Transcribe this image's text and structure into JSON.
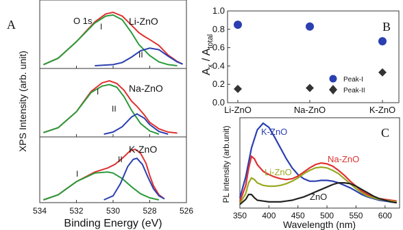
{
  "panel_letters": {
    "a": "A",
    "b": "B",
    "c": "C"
  },
  "chart_data": [
    {
      "panel": "A",
      "type": "line",
      "xlabel": "Binding Energy (eV)",
      "ylabel": "XPS Intensity (arb. unit)",
      "x_tick_labels": [
        "534",
        "532",
        "530",
        "528",
        "526"
      ],
      "xlim": [
        534,
        526
      ],
      "x_reversed": true,
      "annotation": "O 1s",
      "subplots": [
        {
          "name": "Li-ZnO",
          "peak_labels": [
            "I",
            "II"
          ],
          "series": [
            {
              "role": "data",
              "color": "#222222",
              "x": [
                533.8,
                533,
                532,
                531,
                530.4,
                530,
                529.5,
                529,
                528.6,
                528.3,
                528,
                527.5,
                527,
                526.5,
                526.2
              ],
              "y": [
                0.02,
                0.14,
                0.45,
                0.82,
                0.97,
                1.0,
                0.93,
                0.76,
                0.62,
                0.55,
                0.49,
                0.38,
                0.2,
                0.08,
                0.03
              ]
            },
            {
              "role": "fit-sum",
              "color": "#e03030",
              "x": [
                533.8,
                533,
                532,
                531,
                530.4,
                530,
                529.5,
                529,
                528.6,
                528.3,
                528,
                527.5,
                527,
                526.5,
                526.2
              ],
              "y": [
                0.02,
                0.14,
                0.45,
                0.82,
                0.97,
                1.0,
                0.93,
                0.76,
                0.62,
                0.55,
                0.49,
                0.38,
                0.2,
                0.08,
                0.03
              ]
            },
            {
              "role": "peak-I",
              "color": "#2a9a3a",
              "x": [
                533.8,
                533,
                532,
                531,
                530.4,
                530,
                529.5,
                529,
                528.6,
                528,
                527.5,
                527,
                526.5
              ],
              "y": [
                0.02,
                0.14,
                0.45,
                0.8,
                0.93,
                0.95,
                0.86,
                0.62,
                0.4,
                0.19,
                0.07,
                0.02,
                0.0
              ]
            },
            {
              "role": "peak-II",
              "color": "#2a3fb0",
              "x": [
                531,
                530,
                529.5,
                529,
                528.5,
                528,
                527.5,
                527,
                526.5,
                526.2
              ],
              "y": [
                0.0,
                0.02,
                0.06,
                0.16,
                0.28,
                0.33,
                0.3,
                0.18,
                0.07,
                0.03
              ]
            }
          ]
        },
        {
          "name": "Na-ZnO",
          "peak_labels": [
            "I",
            "II"
          ],
          "series": [
            {
              "role": "data",
              "color": "#222222",
              "x": [
                533.8,
                533,
                532,
                531.2,
                530.6,
                530.2,
                529.8,
                529.4,
                529,
                528.7,
                528.3,
                528,
                527.5,
                527,
                526.5
              ],
              "y": [
                0.03,
                0.12,
                0.42,
                0.8,
                0.96,
                1.0,
                0.95,
                0.82,
                0.62,
                0.52,
                0.36,
                0.22,
                0.1,
                0.04,
                0.02
              ]
            },
            {
              "role": "fit-sum",
              "color": "#e03030",
              "x": [
                533.8,
                533,
                532,
                531.2,
                530.6,
                530.2,
                529.8,
                529.4,
                529,
                528.7,
                528.3,
                528,
                527.5,
                527,
                526.5
              ],
              "y": [
                0.03,
                0.12,
                0.42,
                0.8,
                0.96,
                1.0,
                0.95,
                0.82,
                0.62,
                0.52,
                0.36,
                0.22,
                0.1,
                0.04,
                0.02
              ]
            },
            {
              "role": "peak-I",
              "color": "#2a9a3a",
              "x": [
                533.8,
                533,
                532,
                531.2,
                530.6,
                530.2,
                529.8,
                529.4,
                529,
                528.5,
                528,
                527.5
              ],
              "y": [
                0.03,
                0.12,
                0.42,
                0.78,
                0.9,
                0.93,
                0.88,
                0.7,
                0.45,
                0.2,
                0.06,
                0.0
              ]
            },
            {
              "role": "peak-II",
              "color": "#2a3fb0",
              "x": [
                530.5,
                530,
                529.5,
                529,
                528.7,
                528.3,
                528,
                527.5,
                527
              ],
              "y": [
                0.0,
                0.04,
                0.14,
                0.32,
                0.38,
                0.3,
                0.18,
                0.05,
                0.0
              ]
            }
          ]
        },
        {
          "name": "K-ZnO",
          "peak_labels": [
            "I",
            "II"
          ],
          "series": [
            {
              "role": "data",
              "color": "#222222",
              "x": [
                533.8,
                533,
                532,
                531,
                530.3,
                529.9,
                529.5,
                529.1,
                528.8,
                528.5,
                528.2,
                528,
                527.8,
                527.5,
                527.2
              ],
              "y": [
                0.0,
                0.1,
                0.36,
                0.55,
                0.63,
                0.7,
                0.82,
                0.96,
                1.0,
                0.92,
                0.72,
                0.48,
                0.28,
                0.1,
                0.02
              ]
            },
            {
              "role": "fit-sum",
              "color": "#e03030",
              "x": [
                533.8,
                533,
                532,
                531,
                530.3,
                529.9,
                529.5,
                529.1,
                528.8,
                528.5,
                528.2,
                528,
                527.8,
                527.5,
                527.2
              ],
              "y": [
                0.0,
                0.1,
                0.36,
                0.55,
                0.63,
                0.7,
                0.82,
                0.96,
                1.0,
                0.92,
                0.72,
                0.48,
                0.28,
                0.1,
                0.02
              ]
            },
            {
              "role": "peak-I",
              "color": "#2a9a3a",
              "x": [
                533.8,
                533,
                532,
                531,
                530.3,
                530,
                529.5,
                529,
                528.5,
                528,
                527.5
              ],
              "y": [
                0.0,
                0.1,
                0.36,
                0.53,
                0.55,
                0.53,
                0.42,
                0.26,
                0.12,
                0.04,
                0.0
              ]
            },
            {
              "role": "peak-II",
              "color": "#2a3fb0",
              "x": [
                530.5,
                530,
                529.6,
                529.2,
                528.9,
                528.7,
                528.4,
                528.1,
                527.8,
                527.5,
                527.2
              ],
              "y": [
                0.0,
                0.08,
                0.32,
                0.66,
                0.8,
                0.82,
                0.7,
                0.45,
                0.22,
                0.08,
                0.02
              ]
            }
          ]
        }
      ]
    },
    {
      "panel": "B",
      "type": "scatter",
      "categories": [
        "Li-ZnO",
        "Na-ZnO",
        "K-ZnO"
      ],
      "ylabel_main": "A",
      "ylabel_sub1": "x",
      "ylabel_sep": " / A",
      "ylabel_sub2": "total",
      "ylim": [
        0.0,
        1.0
      ],
      "y_tick_labels": [
        "0.0",
        "0.2",
        "0.4",
        "0.6",
        "0.8",
        "1.0"
      ],
      "legend_position": "bottom-right",
      "series": [
        {
          "name": "Peak-I",
          "marker": "circle",
          "color": "#2a3fb0",
          "values": [
            0.85,
            0.83,
            0.67
          ]
        },
        {
          "name": "Peak-II",
          "marker": "diamond",
          "color": "#333333",
          "values": [
            0.15,
            0.16,
            0.33
          ]
        }
      ]
    },
    {
      "panel": "C",
      "type": "line",
      "xlabel": "Wavelength (nm)",
      "ylabel": "PL intensity (arb.unit)",
      "xlim": [
        350,
        625
      ],
      "x_tick_labels": [
        "350",
        "400",
        "450",
        "500",
        "550",
        "600"
      ],
      "x_ticks": [
        350,
        400,
        450,
        500,
        550,
        600
      ],
      "series": [
        {
          "name": "K-ZnO",
          "color": "#2a3fb0",
          "x": [
            350,
            360,
            370,
            380,
            390,
            400,
            410,
            420,
            430,
            440,
            450,
            460,
            470,
            480,
            490,
            500,
            510,
            520,
            530,
            540,
            550,
            560,
            570,
            580,
            590,
            600,
            610,
            620
          ],
          "y": [
            0.1,
            0.35,
            0.7,
            0.92,
            1.0,
            0.95,
            0.83,
            0.7,
            0.57,
            0.46,
            0.38,
            0.33,
            0.3,
            0.3,
            0.31,
            0.31,
            0.3,
            0.28,
            0.25,
            0.22,
            0.18,
            0.14,
            0.11,
            0.09,
            0.07,
            0.06,
            0.05,
            0.04
          ]
        },
        {
          "name": "Na-ZnO",
          "color": "#e03030",
          "x": [
            350,
            360,
            365,
            370,
            375,
            380,
            390,
            400,
            410,
            420,
            430,
            440,
            450,
            460,
            470,
            480,
            490,
            500,
            510,
            520,
            530,
            540,
            550,
            560,
            570,
            580,
            590,
            600,
            610,
            620
          ],
          "y": [
            0.05,
            0.25,
            0.45,
            0.6,
            0.57,
            0.5,
            0.42,
            0.38,
            0.35,
            0.33,
            0.32,
            0.33,
            0.36,
            0.41,
            0.46,
            0.5,
            0.52,
            0.51,
            0.48,
            0.43,
            0.37,
            0.3,
            0.24,
            0.18,
            0.14,
            0.11,
            0.09,
            0.08,
            0.07,
            0.06
          ]
        },
        {
          "name": "Li-ZnO",
          "color": "#9aa820",
          "x": [
            350,
            360,
            365,
            370,
            375,
            380,
            390,
            400,
            410,
            420,
            430,
            440,
            450,
            460,
            470,
            480,
            490,
            500,
            510,
            520,
            530,
            540,
            550,
            560,
            570,
            580,
            590,
            600,
            610,
            620
          ],
          "y": [
            0.03,
            0.15,
            0.28,
            0.34,
            0.32,
            0.28,
            0.25,
            0.24,
            0.24,
            0.25,
            0.27,
            0.3,
            0.34,
            0.39,
            0.43,
            0.46,
            0.47,
            0.46,
            0.43,
            0.39,
            0.33,
            0.27,
            0.21,
            0.16,
            0.12,
            0.1,
            0.08,
            0.07,
            0.06,
            0.05
          ]
        },
        {
          "name": "ZnO",
          "color": "#222222",
          "x": [
            350,
            360,
            365,
            370,
            375,
            380,
            390,
            400,
            410,
            420,
            430,
            440,
            450,
            460,
            470,
            480,
            490,
            500,
            510,
            520,
            530,
            540,
            550,
            560,
            570,
            580,
            590,
            600,
            610,
            620
          ],
          "y": [
            0.02,
            0.08,
            0.14,
            0.14,
            0.1,
            0.07,
            0.06,
            0.05,
            0.05,
            0.05,
            0.06,
            0.07,
            0.09,
            0.11,
            0.14,
            0.17,
            0.2,
            0.23,
            0.26,
            0.28,
            0.28,
            0.27,
            0.24,
            0.2,
            0.16,
            0.12,
            0.09,
            0.07,
            0.05,
            0.04
          ]
        }
      ]
    }
  ]
}
